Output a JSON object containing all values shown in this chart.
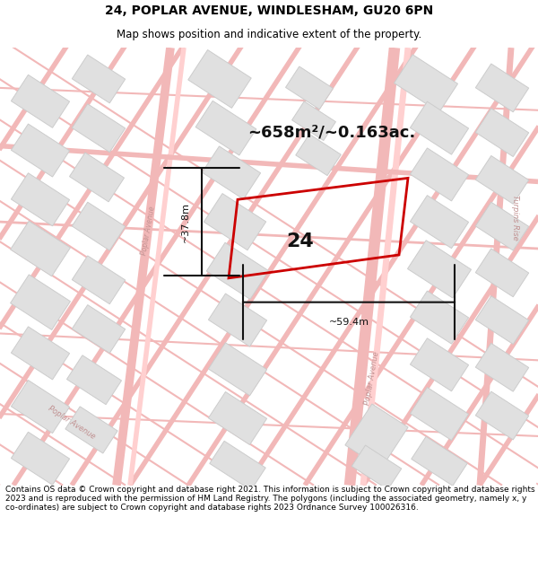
{
  "title_line1": "24, POPLAR AVENUE, WINDLESHAM, GU20 6PN",
  "title_line2": "Map shows position and indicative extent of the property.",
  "footer_text": "Contains OS data © Crown copyright and database right 2021. This information is subject to Crown copyright and database rights 2023 and is reproduced with the permission of HM Land Registry. The polygons (including the associated geometry, namely x, y co-ordinates) are subject to Crown copyright and database rights 2023 Ordnance Survey 100026316.",
  "area_label": "~658m²/~0.163ac.",
  "number_label": "24",
  "dim_width_label": "~59.4m",
  "dim_height_label": "~37.8m",
  "map_bg": "#f8f8f8",
  "road_color": "#f2b8b8",
  "road_outline": "#e8a0a0",
  "building_fill": "#e0e0e0",
  "building_edge": "#cccccc",
  "plot_color": "#cc0000",
  "dim_color": "#111111",
  "title_fs": 10,
  "subtitle_fs": 8.5,
  "footer_fs": 6.5,
  "area_fs": 13,
  "num_fs": 16,
  "dim_fs": 8,
  "road_label_color": "#c09090",
  "road_label_fs": 6
}
